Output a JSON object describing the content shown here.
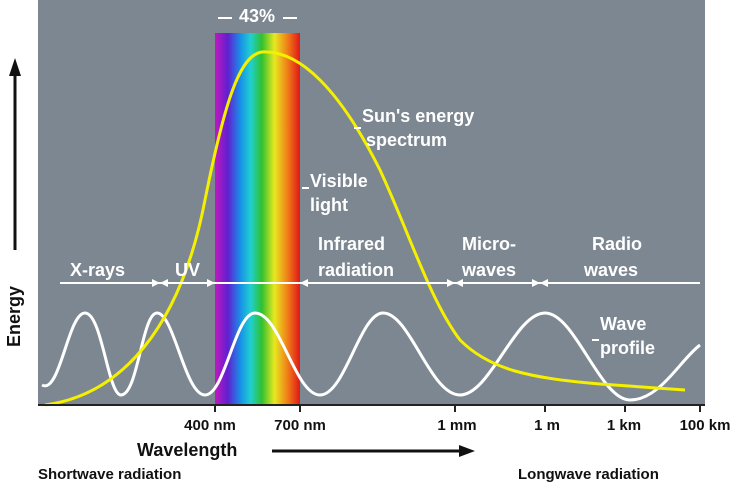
{
  "header": {
    "percent": "43%"
  },
  "curves": {
    "sun": [
      "Sun's energy",
      "spectrum"
    ],
    "visible": [
      "Visible",
      "light"
    ],
    "wave": [
      "Wave",
      "profile"
    ]
  },
  "bands": {
    "xrays": "X-rays",
    "uv": "UV",
    "infrared": [
      "Infrared",
      "radiation"
    ],
    "micro": [
      "Micro-",
      "waves"
    ],
    "radio": [
      "Radio",
      "waves"
    ]
  },
  "axis": {
    "y_label": "Energy",
    "x_label": "Wavelength",
    "ticks": [
      "400 nm",
      "700 nm",
      "1 mm",
      "1 m",
      "1 km",
      "100 km"
    ],
    "left": "Shortwave radiation",
    "right": "Longwave radiation"
  }
}
